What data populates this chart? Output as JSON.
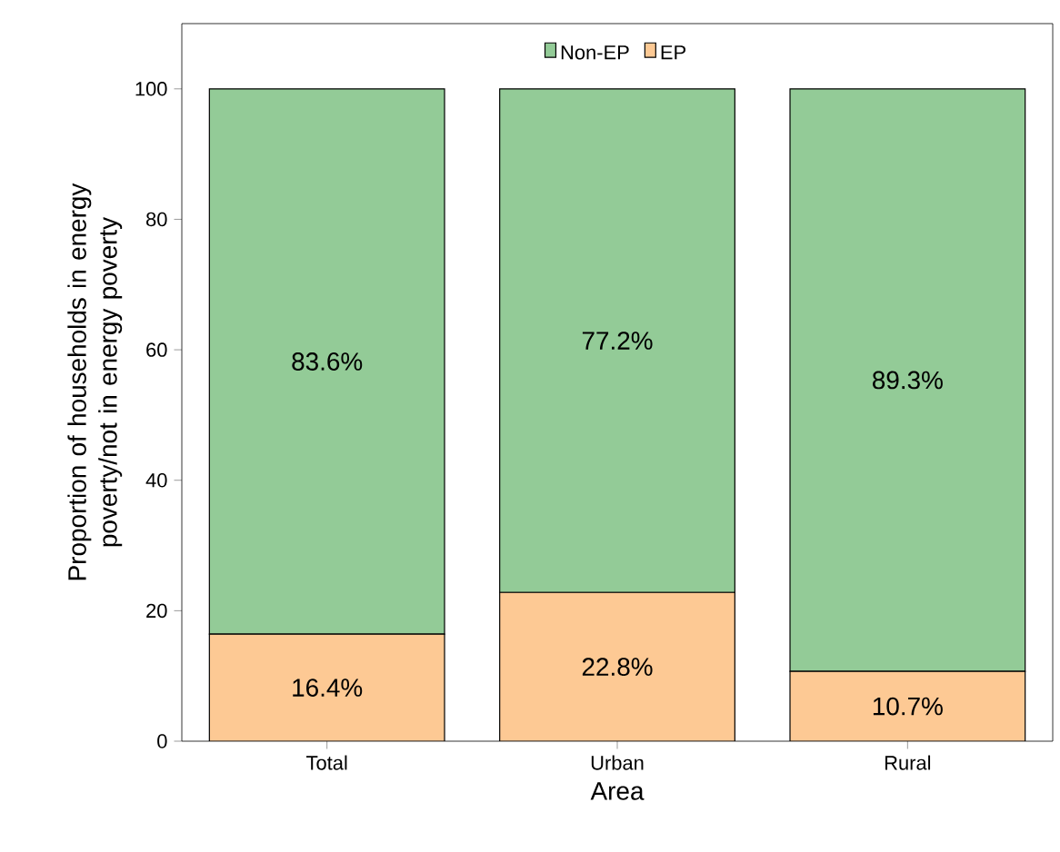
{
  "chart_data": {
    "type": "bar",
    "stacked": true,
    "xlabel": "Area",
    "ylabel": "Proportion of households in energy poverty/not in energy poverty",
    "categories": [
      "Total",
      "Urban",
      "Rural"
    ],
    "series": [
      {
        "name": "EP",
        "color": "#fdc994",
        "values": [
          16.4,
          22.8,
          10.7
        ],
        "value_labels": [
          "16.4%",
          "22.8%",
          "10.7%"
        ]
      },
      {
        "name": "Non-EP",
        "color": "#93cb97",
        "values": [
          83.6,
          77.2,
          89.3
        ],
        "value_labels": [
          "83.6%",
          "77.2%",
          "89.3%"
        ]
      }
    ],
    "ylim": [
      0,
      110
    ],
    "yticks": [
      0,
      20,
      40,
      60,
      80,
      100
    ],
    "grid": false,
    "legend": "top"
  }
}
